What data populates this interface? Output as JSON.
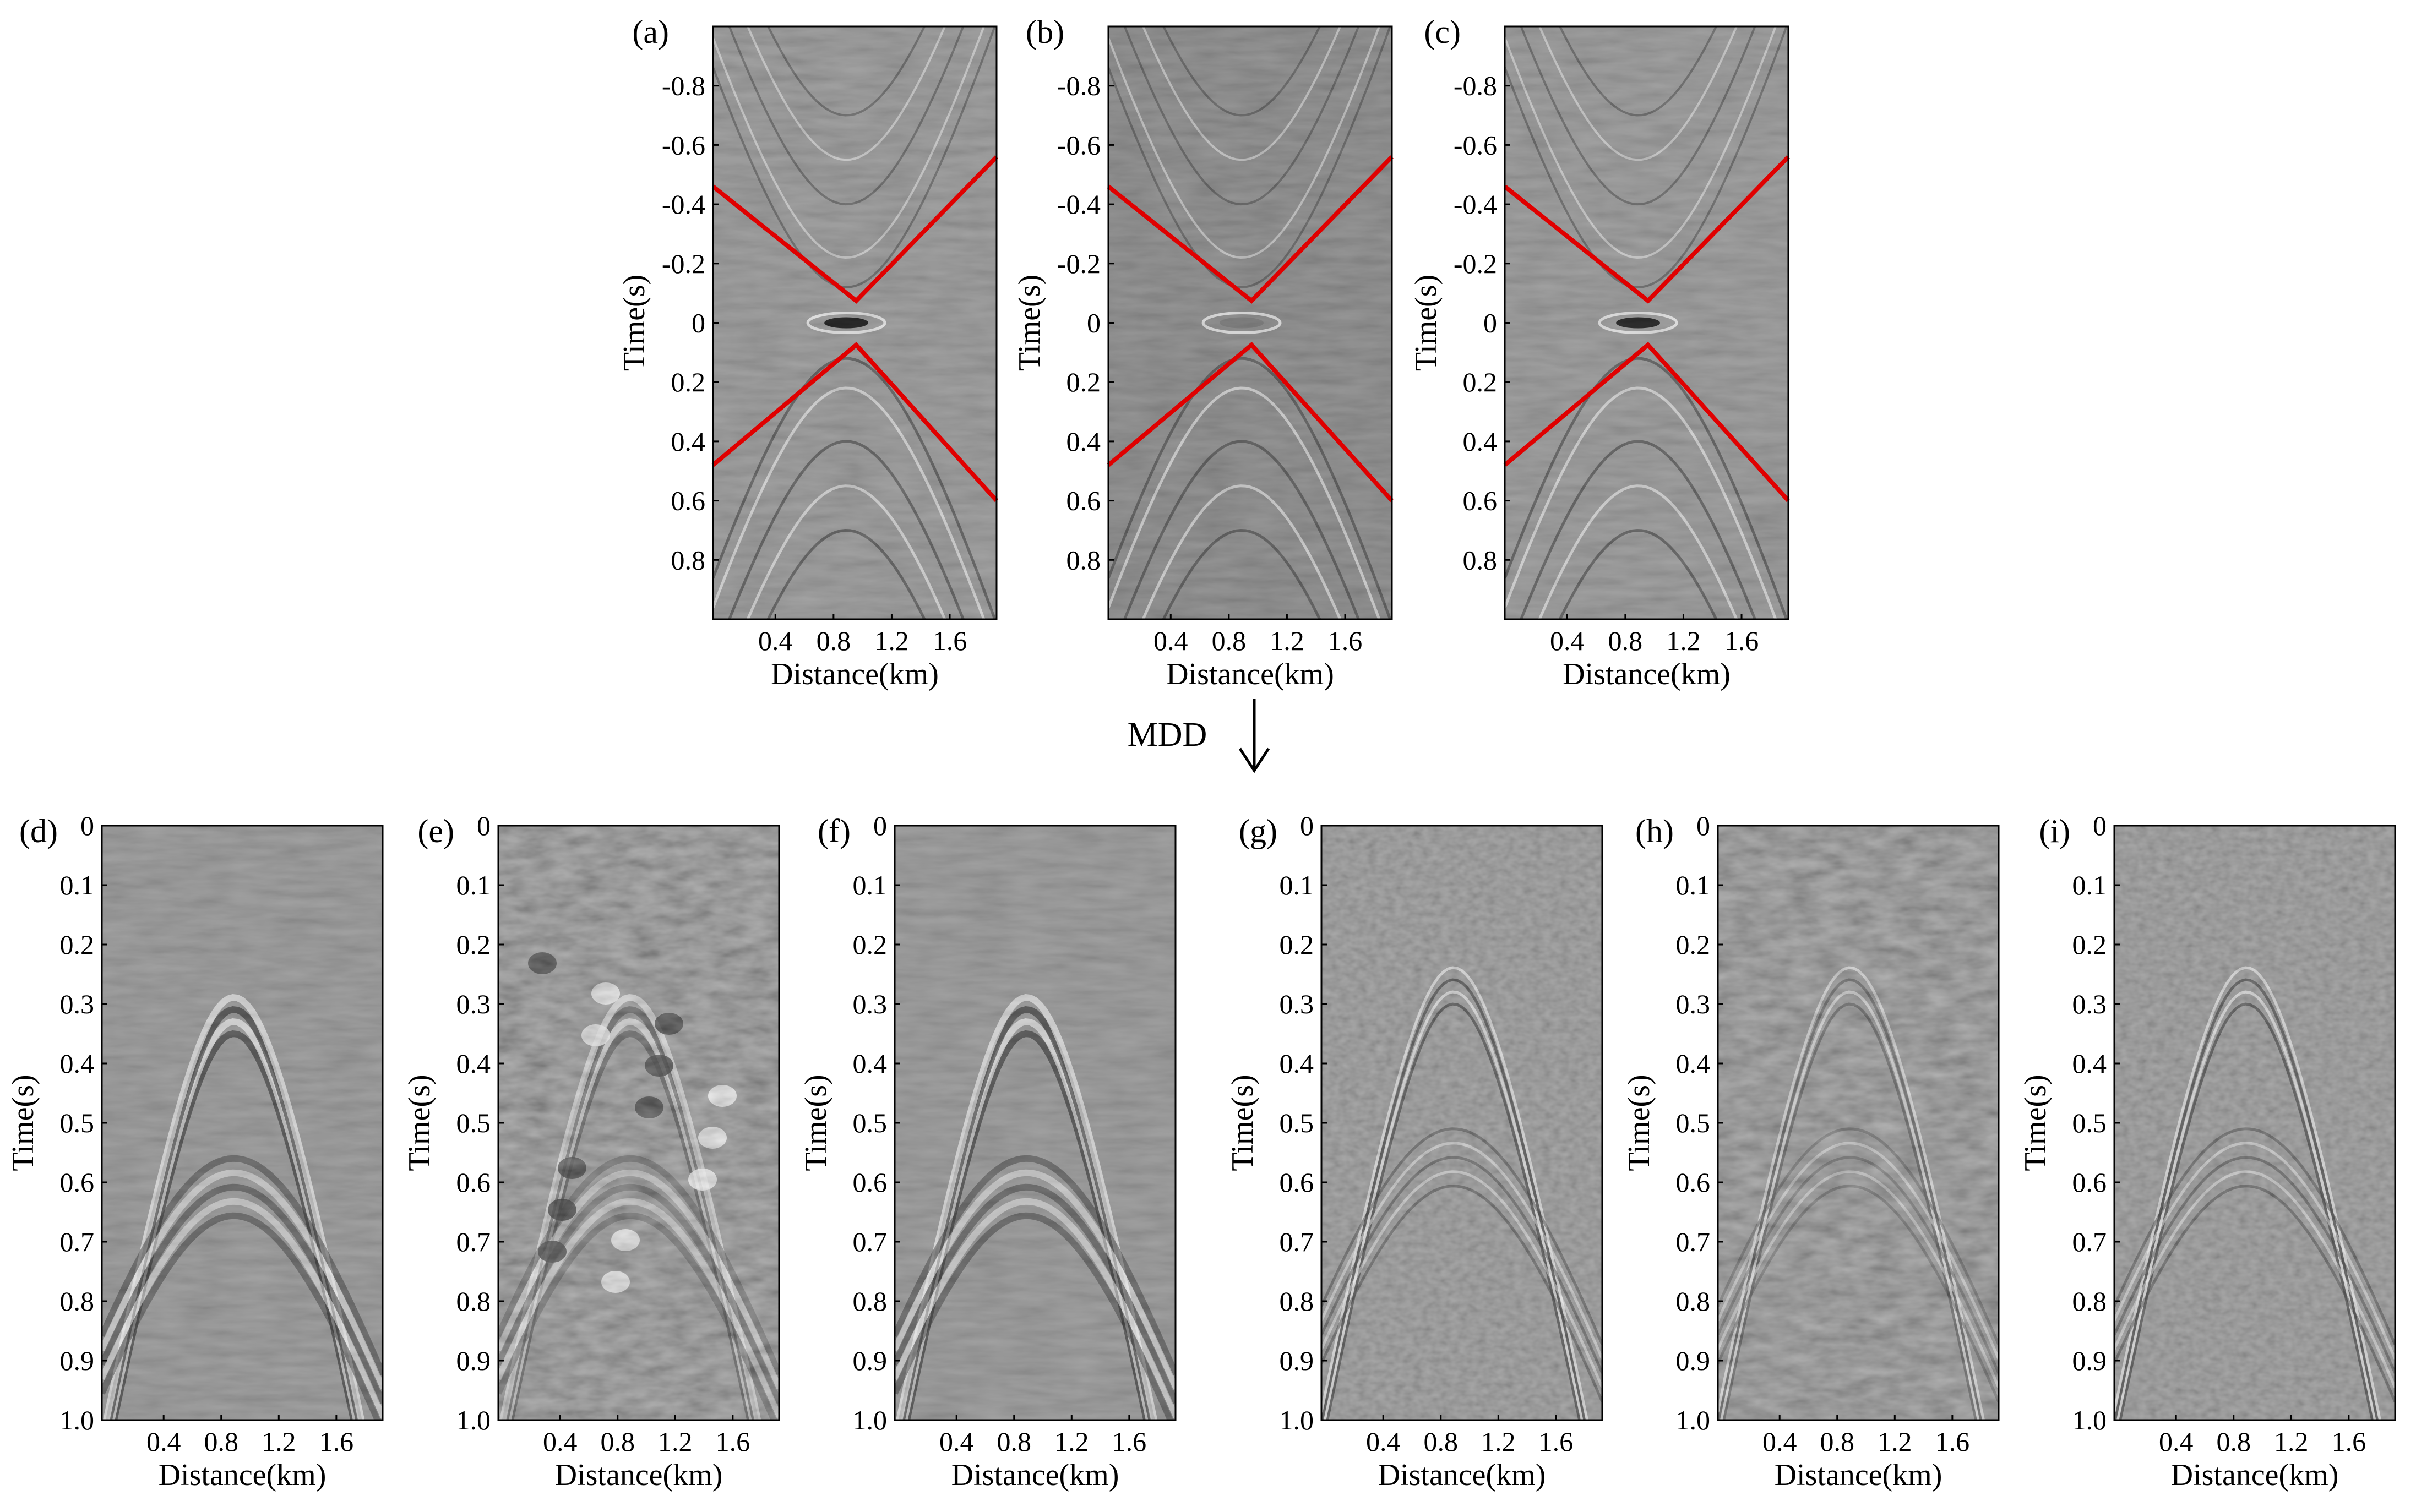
{
  "figure": {
    "transition_label": "MDD",
    "panels": [
      {
        "id": "a",
        "label": "(a)",
        "xlabel": "Distance(km)",
        "ylabel": "Time(s)",
        "yticks": [
          "-0.8",
          "-0.6",
          "-0.4",
          "-0.2",
          "0",
          "0.2",
          "0.4",
          "0.6",
          "0.8"
        ],
        "xticks": [
          "0.4",
          "0.8",
          "1.2",
          "1.6"
        ],
        "style": "gather",
        "has_red_lines": true
      },
      {
        "id": "b",
        "label": "(b)",
        "xlabel": "Distance(km)",
        "ylabel": "Time(s)",
        "yticks": [
          "-0.8",
          "-0.6",
          "-0.4",
          "-0.2",
          "0",
          "0.2",
          "0.4",
          "0.6",
          "0.8"
        ],
        "xticks": [
          "0.4",
          "0.8",
          "1.2",
          "1.6"
        ],
        "style": "gather-noisy",
        "has_red_lines": true
      },
      {
        "id": "c",
        "label": "(c)",
        "xlabel": "Distance(km)",
        "ylabel": "Time(s)",
        "yticks": [
          "-0.8",
          "-0.6",
          "-0.4",
          "-0.2",
          "0",
          "0.2",
          "0.4",
          "0.6",
          "0.8"
        ],
        "xticks": [
          "0.4",
          "0.8",
          "1.2",
          "1.6"
        ],
        "style": "gather",
        "has_red_lines": true
      },
      {
        "id": "d",
        "label": "(d)",
        "xlabel": "Distance(km)",
        "ylabel": "Time(s)",
        "yticks": [
          "0",
          "0.1",
          "0.2",
          "0.3",
          "0.4",
          "0.5",
          "0.6",
          "0.7",
          "0.8",
          "0.9",
          "1.0"
        ],
        "xticks": [
          "0.4",
          "0.8",
          "1.2",
          "1.6"
        ],
        "style": "lowfreq",
        "has_red_lines": false
      },
      {
        "id": "e",
        "label": "(e)",
        "xlabel": "Distance(km)",
        "ylabel": "Time(s)",
        "yticks": [
          "0",
          "0.1",
          "0.2",
          "0.3",
          "0.4",
          "0.5",
          "0.6",
          "0.7",
          "0.8",
          "0.9",
          "1.0"
        ],
        "xticks": [
          "0.4",
          "0.8",
          "1.2",
          "1.6"
        ],
        "style": "chaotic",
        "has_red_lines": false
      },
      {
        "id": "f",
        "label": "(f)",
        "xlabel": "Distance(km)",
        "ylabel": "Time(s)",
        "yticks": [
          "0",
          "0.1",
          "0.2",
          "0.3",
          "0.4",
          "0.5",
          "0.6",
          "0.7",
          "0.8",
          "0.9",
          "1.0"
        ],
        "xticks": [
          "0.4",
          "0.8",
          "1.2",
          "1.6"
        ],
        "style": "lowfreq-clean",
        "has_red_lines": false
      },
      {
        "id": "g",
        "label": "(g)",
        "xlabel": "Distance(km)",
        "ylabel": "Time(s)",
        "yticks": [
          "0",
          "0.1",
          "0.2",
          "0.3",
          "0.4",
          "0.5",
          "0.6",
          "0.7",
          "0.8",
          "0.9",
          "1.0"
        ],
        "xticks": [
          "0.4",
          "0.8",
          "1.2",
          "1.6"
        ],
        "style": "highfreq",
        "has_red_lines": false
      },
      {
        "id": "h",
        "label": "(h)",
        "xlabel": "Distance(km)",
        "ylabel": "Time(s)",
        "yticks": [
          "0",
          "0.1",
          "0.2",
          "0.3",
          "0.4",
          "0.5",
          "0.6",
          "0.7",
          "0.8",
          "0.9",
          "1.0"
        ],
        "xticks": [
          "0.4",
          "0.8",
          "1.2",
          "1.6"
        ],
        "style": "highfreq-noisy",
        "has_red_lines": false
      },
      {
        "id": "i",
        "label": "(i)",
        "xlabel": "Distance(km)",
        "ylabel": "Time(s)",
        "yticks": [
          "0",
          "0.1",
          "0.2",
          "0.3",
          "0.4",
          "0.5",
          "0.6",
          "0.7",
          "0.8",
          "0.9",
          "1.0"
        ],
        "xticks": [
          "0.4",
          "0.8",
          "1.2",
          "1.6"
        ],
        "style": "highfreq-clean",
        "has_red_lines": false
      }
    ],
    "colors": {
      "background": "#ffffff",
      "image_mid": "#8a8a8a",
      "red_lines": "#e00000",
      "frame": "#000000"
    }
  }
}
